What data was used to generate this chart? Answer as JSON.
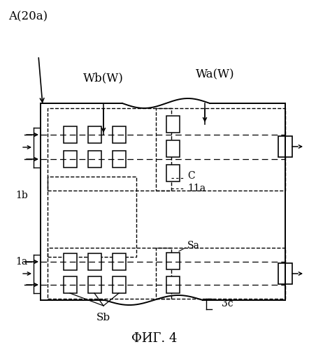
{
  "title": "ФИГ. 4",
  "bg_color": "#ffffff",
  "label_A": "A(20a)",
  "label_Wb": "Wb(W)",
  "label_Wa": "Wa(W)",
  "label_C": "C",
  "label_11a": "11a",
  "label_Sa": "Sa",
  "label_Sb": "Sb",
  "label_1b": "1b",
  "label_1a": "1a",
  "label_3c": "3c"
}
